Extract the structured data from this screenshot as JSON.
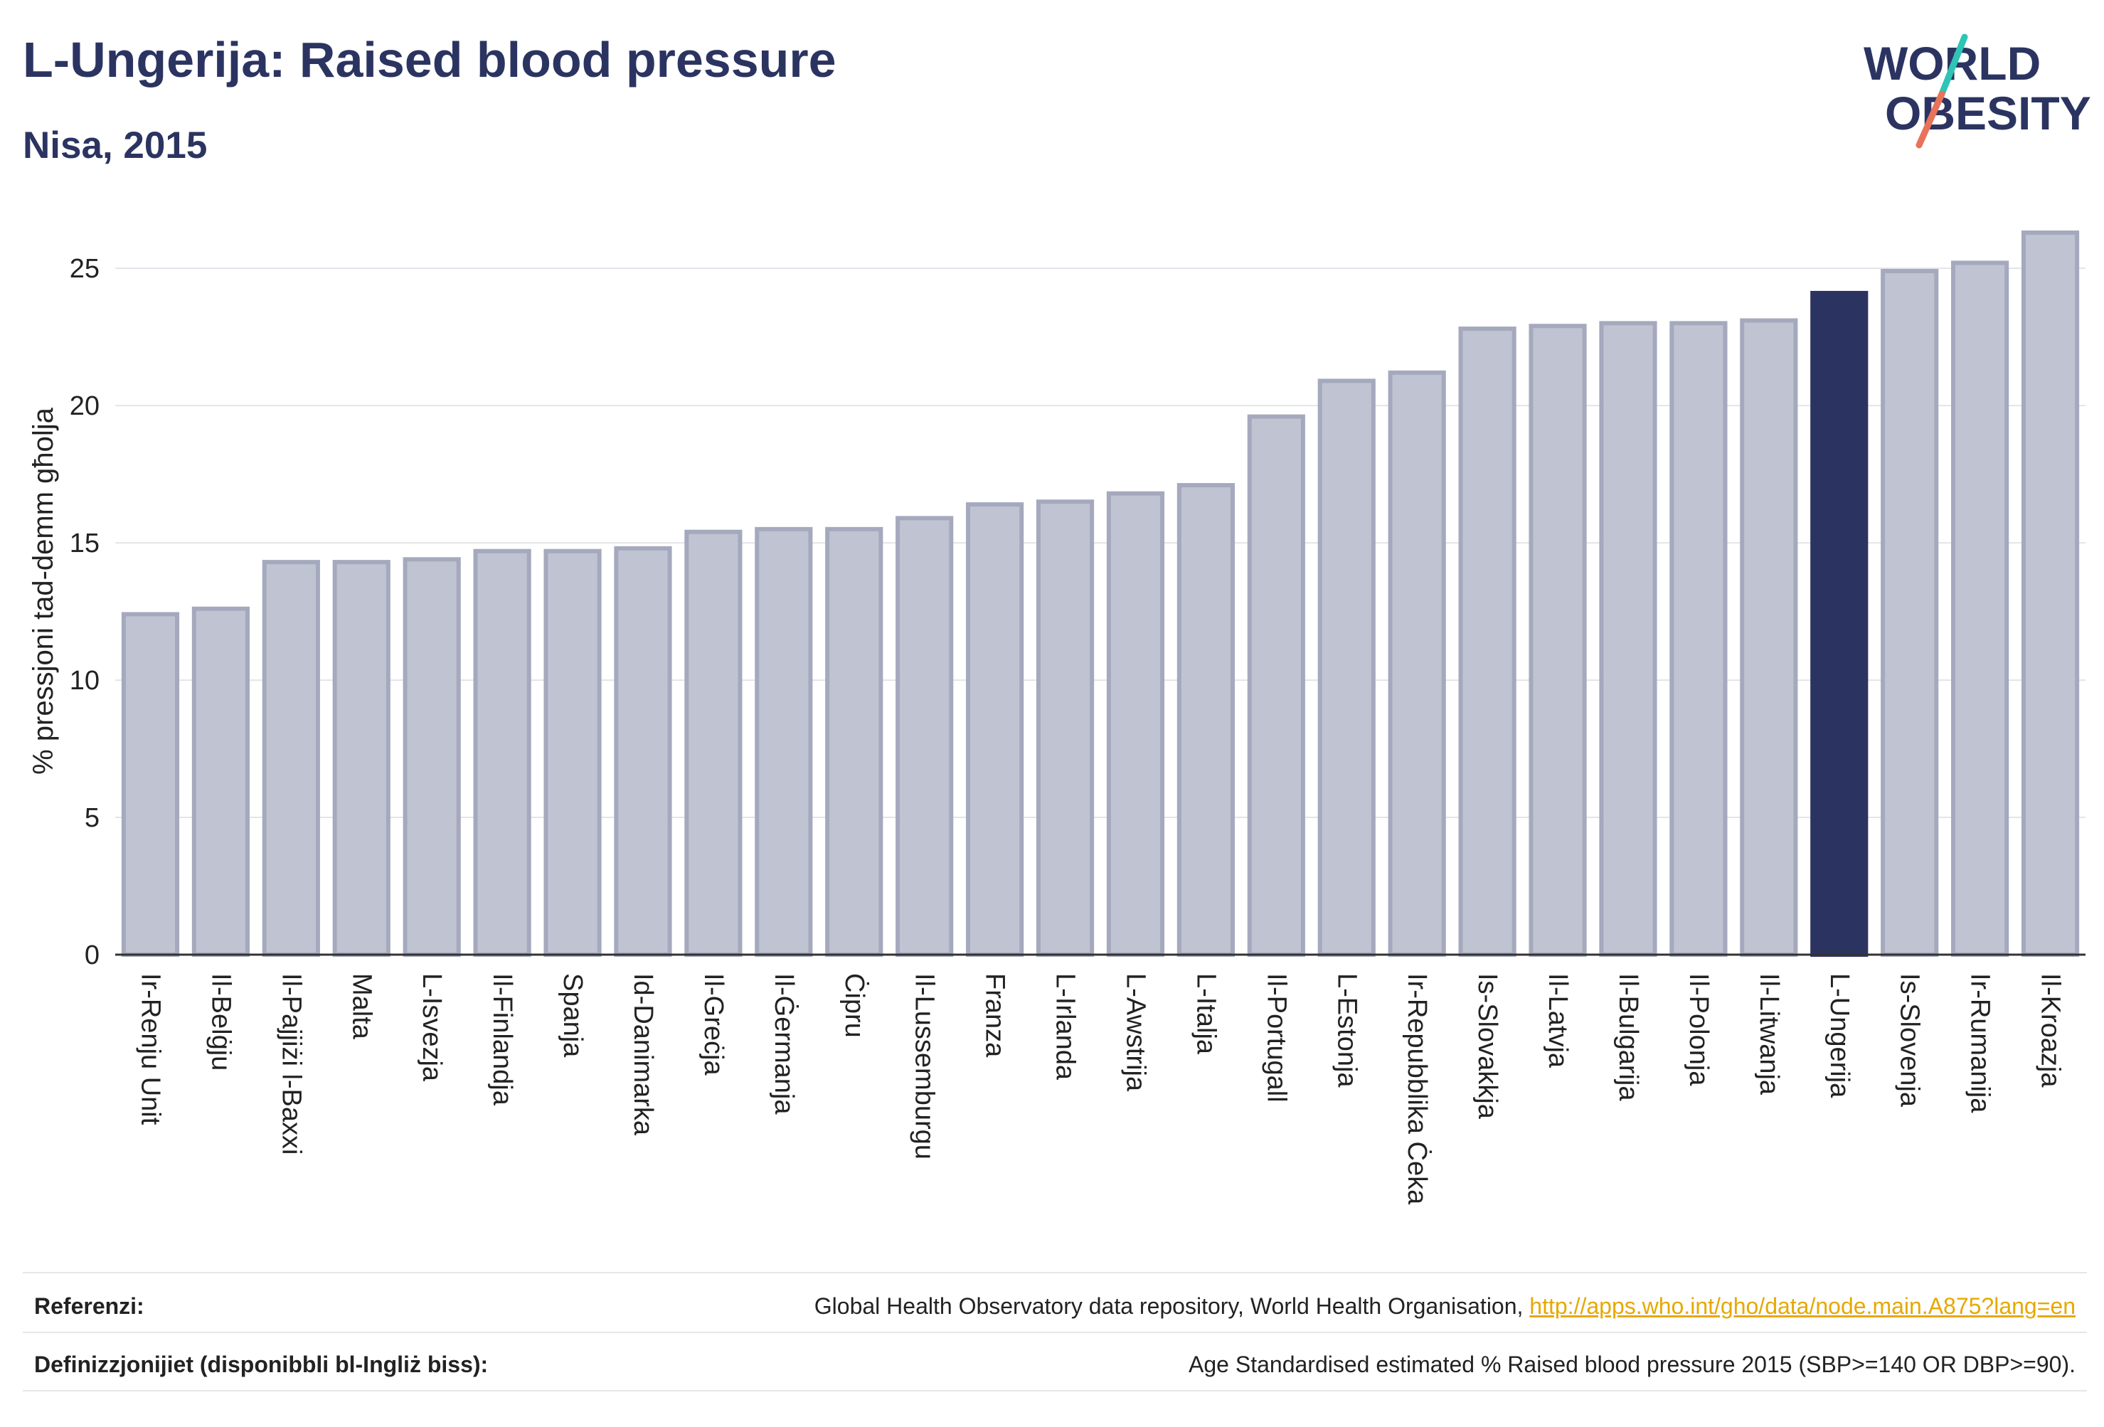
{
  "header": {
    "title": "L-Ungerija: Raised blood pressure",
    "subtitle": "Nisa, 2015"
  },
  "logo": {
    "line1": "WORLD",
    "line2": "OBESITY",
    "text_color": "#2b3461",
    "slash_colors": [
      "#2ec4b6",
      "#e8735a"
    ]
  },
  "chart_data": {
    "type": "bar",
    "ylabel": "% pressjoni tad-demm għolja",
    "ylim": [
      0,
      27
    ],
    "yticks": [
      0,
      5,
      10,
      15,
      20,
      25
    ],
    "grid": true,
    "highlight": "L-Ungerija",
    "colors": {
      "bar": "#c0c3d1",
      "bar_edge": "#a5a9bd",
      "highlight": "#2b3461"
    },
    "categories": [
      "Ir-Renju Unit",
      "Il-Belġju",
      "Il-Pajjiżi l-Baxxi",
      "Malta",
      "L-Isvezja",
      "Il-Finlandja",
      "Spanja",
      "Id-Danimarka",
      "Il-Greċja",
      "Il-Ġermanja",
      "Ċipru",
      "Il-Lussemburgu",
      "Franza",
      "L-Irlanda",
      "L-Awstrija",
      "L-Italja",
      "Il-Portugall",
      "L-Estonja",
      "Ir-Repubblika Ċeka",
      "Is-Slovakkja",
      "Il-Latvja",
      "Il-Bulgarija",
      "Il-Polonja",
      "Il-Litwanja",
      "L-Ungerija",
      "Is-Slovenja",
      "Ir-Rumanija",
      "Il-Kroazja"
    ],
    "values": [
      12.4,
      12.6,
      14.3,
      14.3,
      14.4,
      14.7,
      14.7,
      14.8,
      15.4,
      15.5,
      15.5,
      15.9,
      16.4,
      16.5,
      16.8,
      17.1,
      19.6,
      20.9,
      21.2,
      22.8,
      22.9,
      23.0,
      23.0,
      23.1,
      24.1,
      24.9,
      25.2,
      26.3
    ]
  },
  "footer": {
    "references_label": "Referenzi:",
    "references_text": "Global Health Observatory data repository, World Health Organisation, ",
    "references_link": "http://apps.who.int/gho/data/node.main.A875?lang=en",
    "definitions_label": "Definizzjonijiet (disponibbli bl-Ingliż biss):",
    "definitions_text": "Age Standardised estimated % Raised blood pressure 2015 (SBP>=140 OR DBP>=90)."
  }
}
